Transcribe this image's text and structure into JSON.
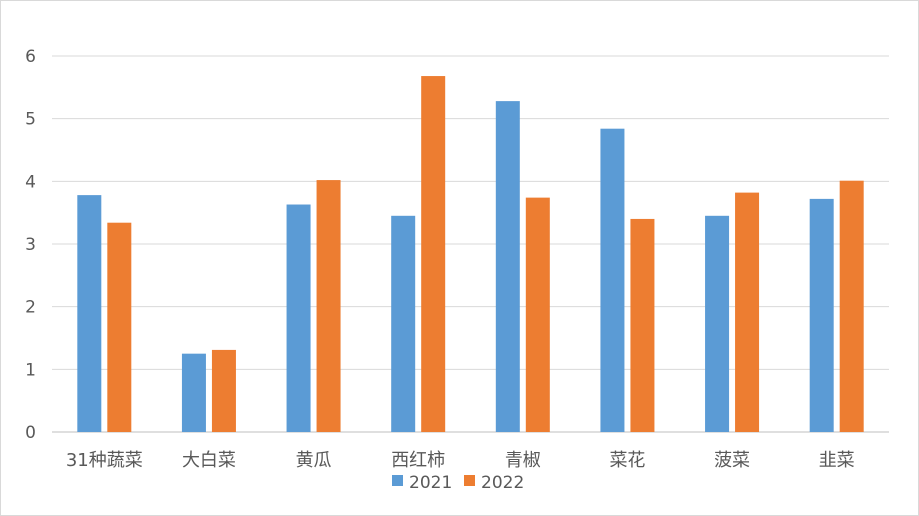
{
  "chart_data": {
    "type": "bar",
    "categories": [
      "31种蔬菜",
      "大白菜",
      "黄瓜",
      "西红柿",
      "青椒",
      "菜花",
      "菠菜",
      "韭菜"
    ],
    "series": [
      {
        "name": "2021",
        "color": "#5B9BD5",
        "values": [
          3.78,
          1.25,
          3.63,
          3.45,
          5.28,
          4.84,
          3.45,
          3.72
        ]
      },
      {
        "name": "2022",
        "color": "#ED7D31",
        "values": [
          3.34,
          1.31,
          4.02,
          5.68,
          3.74,
          3.4,
          3.82,
          4.01
        ]
      }
    ],
    "ylim": [
      0,
      6
    ],
    "yticks": [
      "0",
      "1",
      "2",
      "3",
      "4",
      "5",
      "6"
    ],
    "grid": true,
    "legend": "bottom",
    "title": "",
    "xlabel": "",
    "ylabel": ""
  }
}
